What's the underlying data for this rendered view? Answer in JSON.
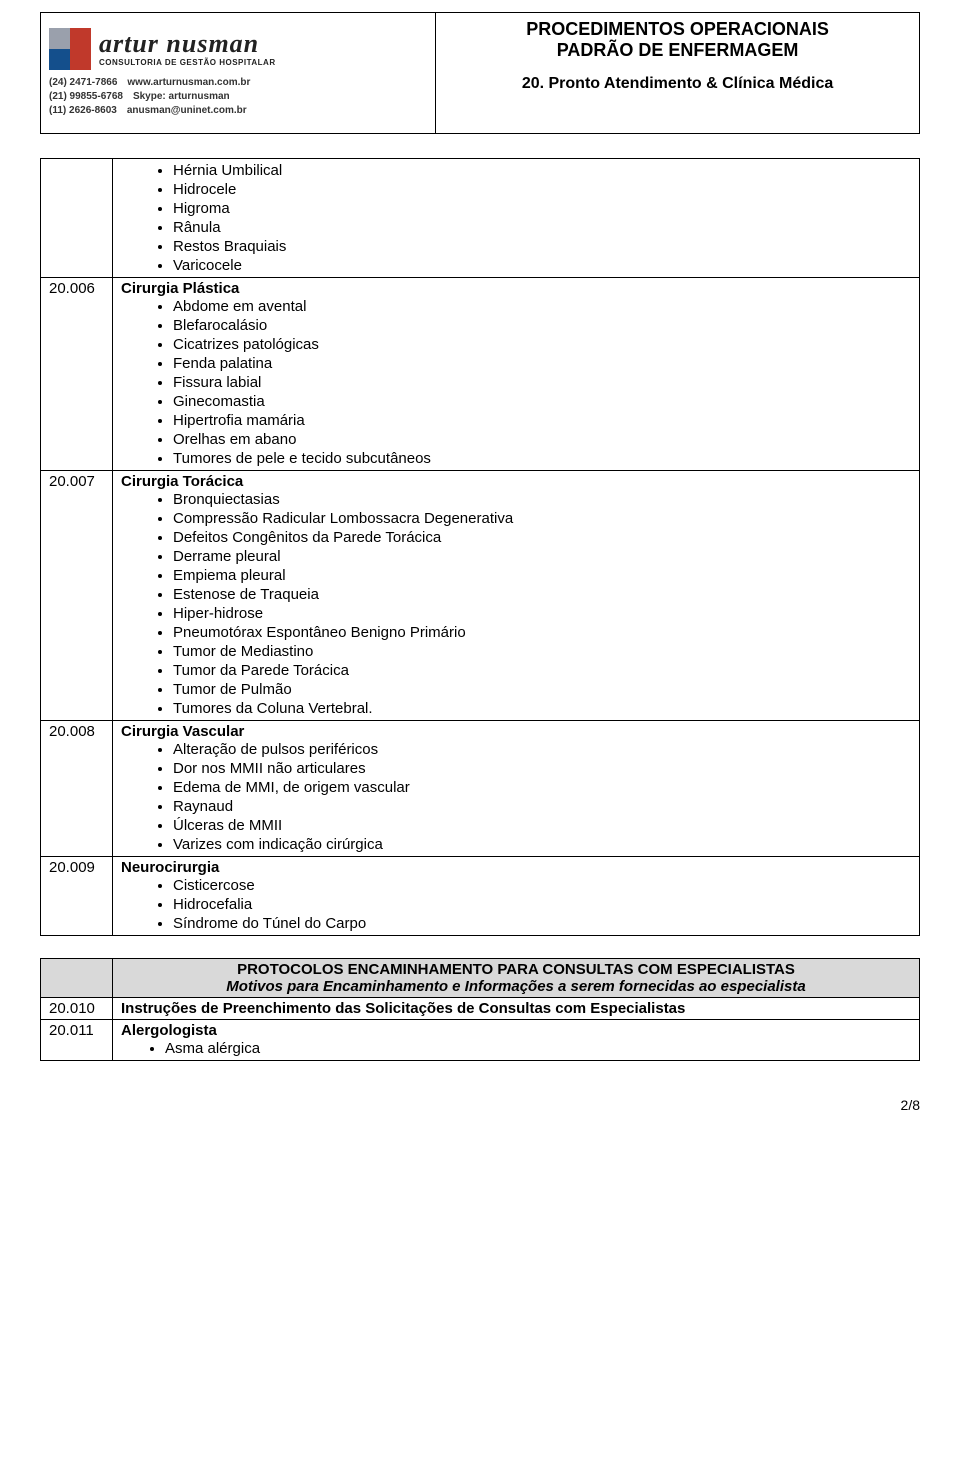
{
  "header": {
    "brand_main": "artur nusman",
    "brand_sub": "CONSULTORIA DE GESTÃO HOSPITALAR",
    "contacts": [
      {
        "phone": "(24) 2471-7866",
        "label": "www.arturnusman.com.br"
      },
      {
        "phone": "(21) 99855-6768",
        "label": "Skype: arturnusman"
      },
      {
        "phone": "(11) 2626-8603",
        "label": "anusman@uninet.com.br"
      }
    ],
    "title_line1": "PROCEDIMENTOS OPERACIONAIS",
    "title_line2": "PADRÃO DE ENFERMAGEM",
    "title_line3": "20. Pronto Atendimento & Clínica Médica"
  },
  "sections": [
    {
      "code": "",
      "title": null,
      "items": [
        "Hérnia Umbilical",
        "Hidrocele",
        "Higroma",
        "Rânula",
        "Restos Braquiais",
        "Varicocele"
      ]
    },
    {
      "code": "20.006",
      "title": "Cirurgia Plástica",
      "items": [
        "Abdome em avental",
        "Blefarocalásio",
        "Cicatrizes patológicas",
        "Fenda palatina",
        "Fissura labial",
        "Ginecomastia",
        "Hipertrofia mamária",
        "Orelhas em abano",
        "Tumores de pele e tecido subcutâneos"
      ]
    },
    {
      "code": "20.007",
      "title": "Cirurgia Torácica",
      "items": [
        "Bronquiectasias",
        "Compressão Radicular Lombossacra Degenerativa",
        "Defeitos Congênitos da Parede Torácica",
        "Derrame pleural",
        "Empiema pleural",
        "Estenose de Traqueia",
        "Hiper-hidrose",
        "Pneumotórax Espontâneo Benigno Primário",
        "Tumor de Mediastino",
        "Tumor da Parede Torácica",
        "Tumor de Pulmão",
        "Tumores da Coluna Vertebral."
      ]
    },
    {
      "code": "20.008",
      "title": "Cirurgia Vascular",
      "items": [
        "Alteração de pulsos periféricos",
        "Dor nos MMII não articulares",
        "Edema de MMI, de origem vascular",
        "Raynaud",
        "Úlceras de MMII",
        "Varizes com indicação cirúrgica"
      ]
    },
    {
      "code": "20.009",
      "title": "Neurocirurgia",
      "items": [
        "Cisticercose",
        "Hidrocefalia",
        "Síndrome do Túnel do Carpo"
      ]
    }
  ],
  "table2": {
    "header_line1": "PROTOCOLOS ENCAMINHAMENTO PARA CONSULTAS COM ESPECIALISTAS",
    "header_line2": "Motivos para Encaminhamento e Informações a serem fornecidas ao especialista",
    "rows": [
      {
        "code": "20.010",
        "text": "Instruções de Preenchimento das Solicitações de Consultas com Especialistas"
      },
      {
        "code": "20.011",
        "text": "Alergologista",
        "items": [
          "Asma alérgica"
        ]
      }
    ]
  },
  "page_number": "2/8"
}
